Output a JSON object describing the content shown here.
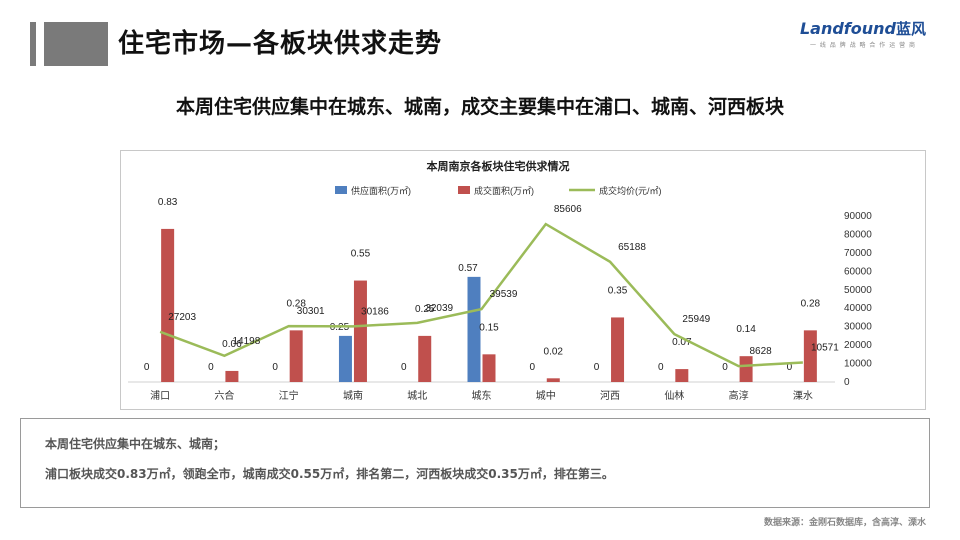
{
  "header": {
    "title": "住宅市场—各板块供求走势",
    "logo_word": "Landfound",
    "logo_cn": "蓝风",
    "logo_tagline": "一 线 品 牌 战 略 合 作 运 营 商"
  },
  "subtitle": "本周住宅供应集中在城东、城南，成交主要集中在浦口、城南、河西板块",
  "chart_data": {
    "type": "bar",
    "title": "本周南京各板块住宅供求情况",
    "categories": [
      "浦口",
      "六合",
      "江宁",
      "城南",
      "城北",
      "城东",
      "城中",
      "河西",
      "仙林",
      "高淳",
      "溧水"
    ],
    "series": [
      {
        "name": "供应面积(万㎡)",
        "type": "bar",
        "axis": "left",
        "color": "#4f7fbf",
        "values": [
          0,
          0,
          0,
          0.25,
          0,
          0.57,
          0,
          0,
          0,
          0,
          0
        ],
        "labels": [
          "0",
          "0",
          "0",
          "0.25",
          "0",
          "0.57",
          "0",
          "0",
          "0",
          "0",
          "0"
        ]
      },
      {
        "name": "成交面积(万㎡)",
        "type": "bar",
        "axis": "left",
        "color": "#c0504d",
        "values": [
          0.83,
          0.06,
          0.28,
          0.55,
          0.25,
          0.15,
          0.02,
          0.35,
          0.07,
          0.14,
          0.28
        ],
        "labels": [
          "0.83",
          "0.06",
          "0.28",
          "0.55",
          "0.25",
          "0.15",
          "0.02",
          "0.35",
          "0.07",
          "0.14",
          "0.28"
        ]
      },
      {
        "name": "成交均价(元/㎡)",
        "type": "line",
        "axis": "right",
        "color": "#9bbb59",
        "values": [
          27203,
          14198,
          30301,
          30186,
          32039,
          39539,
          85606,
          65188,
          25949,
          8628,
          10571
        ],
        "labels": [
          "27203",
          "14198",
          "30301",
          "30186",
          "32039",
          "39539",
          "85606",
          "65188",
          "25949",
          "8628",
          "10571"
        ]
      }
    ],
    "y_left": {
      "ticks": [
        "0",
        "0.1",
        "0.2",
        "0.3",
        "0.4",
        "0.5",
        "0.6",
        "0.7",
        "0.8",
        "0.9"
      ],
      "lim": [
        0,
        0.9
      ]
    },
    "y_right": {
      "ticks": [
        "0",
        "10000",
        "20000",
        "30000",
        "40000",
        "50000",
        "60000",
        "70000",
        "80000",
        "90000"
      ],
      "lim": [
        0,
        90000
      ]
    },
    "legend_position": "top",
    "grid": false
  },
  "notes": {
    "line1": "本周住宅供应集中在城东、城南；",
    "line2": "浦口板块成交0.83万㎡，领跑全市，城南成交0.55万㎡，排名第二，河西板块成交0.35万㎡，排在第三。"
  },
  "source": "数据来源：金刚石数据库，含高淳、溧水"
}
